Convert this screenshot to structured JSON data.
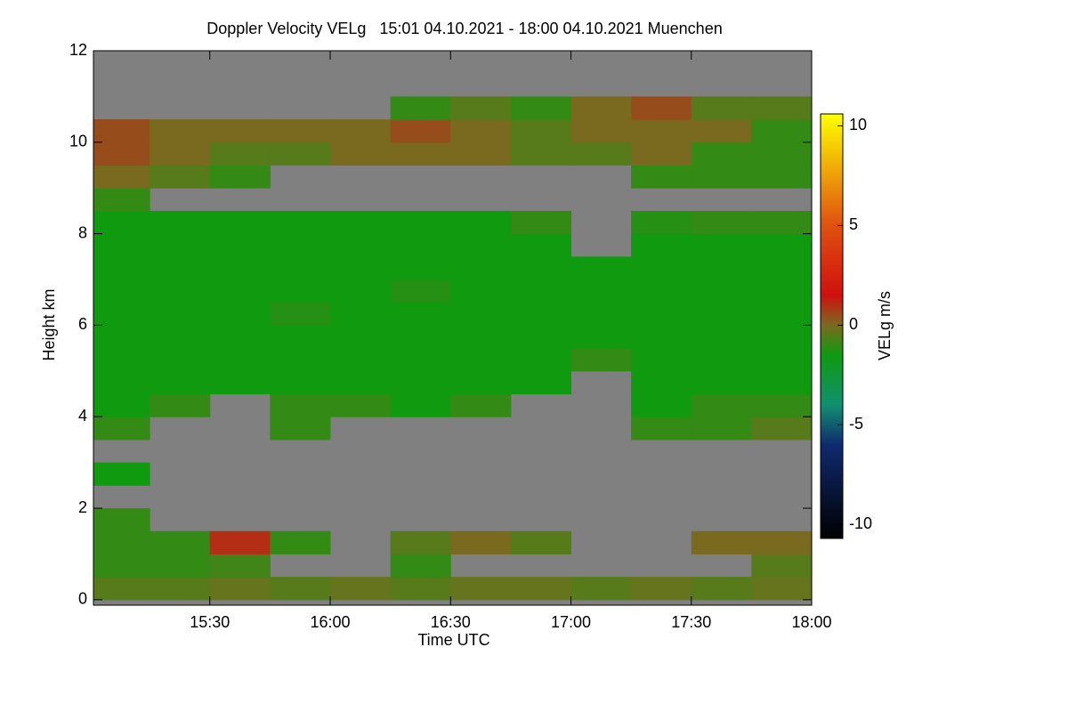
{
  "chart_data": {
    "type": "heatmap",
    "title": "Doppler Velocity VELg   15:01 04.10.2021 - 18:00 04.10.2021 Muenchen",
    "xlabel": "Time UTC",
    "ylabel": "Height km",
    "colorbar_label": "VELg m/s",
    "xlim": [
      15.0167,
      18
    ],
    "xticks": [
      {
        "value": 15.5,
        "label": "15:30"
      },
      {
        "value": 16,
        "label": "16:00"
      },
      {
        "value": 16.5,
        "label": "16:30"
      },
      {
        "value": 17,
        "label": "17:00"
      },
      {
        "value": 17.5,
        "label": "17:30"
      },
      {
        "value": 18,
        "label": "18:00"
      }
    ],
    "ylim": [
      -0.12,
      12
    ],
    "yticks": [
      0,
      2,
      4,
      6,
      8,
      10,
      12
    ],
    "zlim": [
      -10.7,
      10.6
    ],
    "zticks": [
      -10,
      -5,
      0,
      5,
      10
    ],
    "no_data_color": "#808080",
    "colorscale": [
      [
        -10.7,
        "#000000"
      ],
      [
        -6,
        "#102a70"
      ],
      [
        -4,
        "#109070"
      ],
      [
        -1.5,
        "#109a10"
      ],
      [
        0,
        "#7a6a20"
      ],
      [
        1.5,
        "#d01010"
      ],
      [
        5,
        "#e05010"
      ],
      [
        10.6,
        "#ffff00"
      ]
    ],
    "x": [
      15.125,
      15.375,
      15.625,
      15.875,
      16.125,
      16.375,
      16.625,
      16.875,
      17.125,
      17.375,
      17.625,
      17.875
    ],
    "y": [
      0.25,
      0.75,
      1.25,
      1.75,
      2.25,
      2.75,
      3.25,
      3.75,
      4.25,
      4.75,
      5.25,
      5.75,
      6.25,
      6.75,
      7.25,
      7.75,
      8.25,
      8.75,
      9.25,
      9.75,
      10.25,
      10.75
    ],
    "z": [
      [
        -0.5,
        -0.5,
        -0.3,
        -0.5,
        -0.3,
        -0.5,
        -0.3,
        -0.3,
        -0.5,
        -0.3,
        -0.5,
        -0.3
      ],
      [
        -1,
        -1,
        -0.8,
        null,
        null,
        -1,
        null,
        null,
        null,
        null,
        null,
        -0.5
      ],
      [
        -1,
        -1,
        1,
        -1,
        null,
        -0.5,
        0,
        -0.5,
        null,
        null,
        0,
        0
      ],
      [
        -1,
        null,
        null,
        null,
        null,
        null,
        null,
        null,
        null,
        null,
        null,
        null
      ],
      [
        null,
        null,
        null,
        null,
        null,
        null,
        null,
        null,
        null,
        null,
        null,
        null
      ],
      [
        -1.5,
        null,
        null,
        null,
        null,
        null,
        null,
        null,
        null,
        null,
        null,
        null
      ],
      [
        null,
        null,
        null,
        null,
        null,
        null,
        null,
        null,
        null,
        null,
        null,
        null
      ],
      [
        -1,
        null,
        null,
        -1,
        null,
        null,
        null,
        null,
        null,
        -1,
        -1,
        -0.5
      ],
      [
        -1.5,
        -1,
        null,
        -1,
        -1,
        -1.5,
        -1,
        null,
        null,
        -1.5,
        -1,
        -1
      ],
      [
        -1.5,
        -1.5,
        -1.5,
        -1.5,
        -1.5,
        -1.5,
        -1.5,
        -1.5,
        null,
        -1.5,
        -1.5,
        -1.5
      ],
      [
        -1.5,
        -1.5,
        -1.5,
        -1.5,
        -1.5,
        -1.5,
        -1.5,
        -1.5,
        -1,
        -1.5,
        -1.5,
        -1.5
      ],
      [
        -1.5,
        -1.5,
        -1.5,
        -1.5,
        -1.5,
        -1.5,
        -1.5,
        -1.5,
        -1.5,
        -1.5,
        -1.5,
        -1.5
      ],
      [
        -1.5,
        -1.5,
        -1.5,
        -1.2,
        -1.5,
        -1.5,
        -1.5,
        -1.5,
        -1.5,
        -1.5,
        -1.5,
        -1.5
      ],
      [
        -1.5,
        -1.5,
        -1.5,
        -1.5,
        -1.5,
        -1.2,
        -1.5,
        -1.5,
        -1.5,
        -1.5,
        -1.5,
        -1.5
      ],
      [
        -1.5,
        -1.5,
        -1.5,
        -1.5,
        -1.5,
        -1.5,
        -1.5,
        -1.5,
        -1.5,
        -1.5,
        -1.5,
        -1.5
      ],
      [
        -1.5,
        -1.5,
        -1.5,
        -1.5,
        -1.5,
        -1.5,
        -1.5,
        -1.5,
        null,
        -1.5,
        -1.5,
        -1.5
      ],
      [
        -1.5,
        -1.5,
        -1.5,
        -1.5,
        -1.5,
        -1.5,
        -1.5,
        -1,
        null,
        -1.2,
        -1,
        -1
      ],
      [
        -1,
        null,
        null,
        null,
        null,
        null,
        null,
        null,
        null,
        null,
        null,
        null
      ],
      [
        0,
        -0.5,
        -1,
        null,
        null,
        null,
        null,
        null,
        null,
        -1,
        -1,
        -1
      ],
      [
        0.5,
        0,
        -0.5,
        -0.5,
        0,
        0,
        0,
        -0.5,
        -0.5,
        0,
        -1,
        -1
      ],
      [
        0.5,
        0,
        0,
        0,
        0,
        0.5,
        0,
        -0.5,
        0,
        0,
        0,
        -1
      ],
      [
        null,
        null,
        null,
        null,
        null,
        -1,
        -0.5,
        -1,
        0,
        0.5,
        -0.5,
        -0.5
      ]
    ]
  }
}
